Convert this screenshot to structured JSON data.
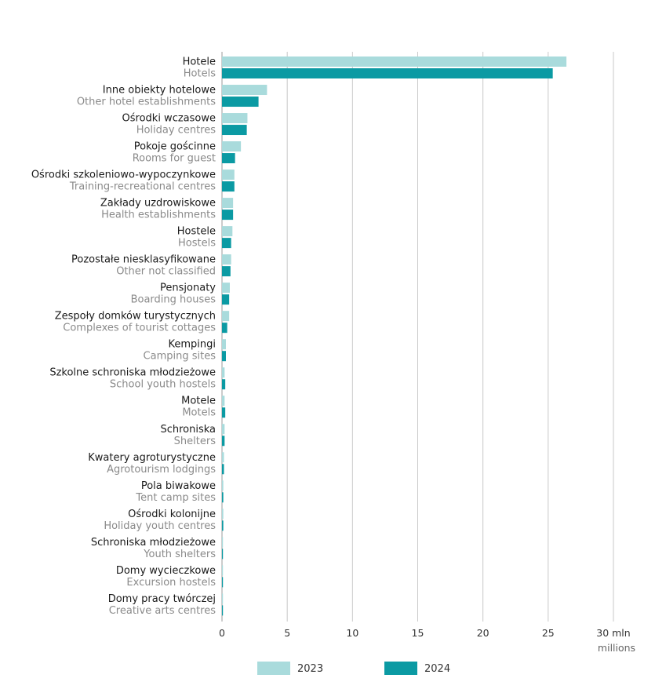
{
  "chart_data": {
    "type": "bar",
    "orientation": "horizontal",
    "categories": [
      {
        "pl": "Hotele",
        "en": "Hotels"
      },
      {
        "pl": "Inne obiekty hotelowe",
        "en": "Other hotel establishments"
      },
      {
        "pl": "Ośrodki wczasowe",
        "en": "Holiday centres"
      },
      {
        "pl": "Pokoje gościnne",
        "en": "Rooms for guest"
      },
      {
        "pl": "Ośrodki szkoleniowo-wypoczynkowe",
        "en": "Training-recreational centres"
      },
      {
        "pl": "Zakłady uzdrowiskowe",
        "en": "Health establishments"
      },
      {
        "pl": "Hostele",
        "en": "Hostels"
      },
      {
        "pl": "Pozostałe niesklasyfikowane",
        "en": "Other not classified"
      },
      {
        "pl": "Pensjonaty",
        "en": "Boarding houses"
      },
      {
        "pl": "Zespoły domków turystycznych",
        "en": "Complexes of tourist cottages"
      },
      {
        "pl": "Kempingi",
        "en": "Camping sites"
      },
      {
        "pl": "Szkolne schroniska młodzieżowe",
        "en": "School youth hostels"
      },
      {
        "pl": "Motele",
        "en": "Motels"
      },
      {
        "pl": "Schroniska",
        "en": "Shelters"
      },
      {
        "pl": "Kwatery agroturystyczne",
        "en": "Agrotourism lodgings"
      },
      {
        "pl": "Pola biwakowe",
        "en": "Tent camp sites"
      },
      {
        "pl": "Ośrodki kolonijne",
        "en": "Holiday youth centres"
      },
      {
        "pl": "Schroniska młodzieżowe",
        "en": "Youth shelters"
      },
      {
        "pl": "Domy wycieczkowe",
        "en": "Excursion hostels"
      },
      {
        "pl": "Domy pracy twórczej",
        "en": "Creative arts centres"
      }
    ],
    "series": [
      {
        "name": "2023",
        "color": "#a9dbdc",
        "values": [
          26.4,
          3.45,
          1.95,
          1.45,
          0.95,
          0.85,
          0.8,
          0.7,
          0.6,
          0.55,
          0.3,
          0.2,
          0.2,
          0.2,
          0.15,
          0.1,
          0.1,
          0.05,
          0.05,
          0.03
        ]
      },
      {
        "name": "2024",
        "color": "#0b9aa3",
        "values": [
          25.35,
          2.8,
          1.9,
          1.0,
          0.95,
          0.85,
          0.7,
          0.65,
          0.55,
          0.4,
          0.3,
          0.25,
          0.25,
          0.2,
          0.15,
          0.1,
          0.1,
          0.05,
          0.05,
          0.03
        ]
      }
    ],
    "x_ticks": [
      "0",
      "5",
      "10",
      "15",
      "20",
      "25",
      "30 mln"
    ],
    "x_tick_values": [
      0,
      5,
      10,
      15,
      20,
      25,
      30
    ],
    "xlim": [
      0,
      30
    ],
    "x_unit_label": "millions",
    "grid": true,
    "legend_position": "bottom"
  }
}
